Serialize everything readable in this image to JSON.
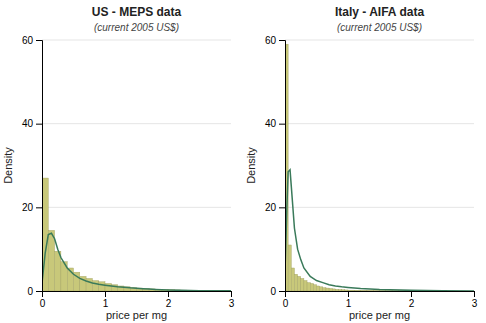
{
  "chart_data": [
    {
      "type": "histogram",
      "title": "US - MEPS data",
      "subtitle": "(current 2005 US$)",
      "xlabel": "price per mg",
      "ylabel": "Density",
      "xlim": [
        0,
        3
      ],
      "ylim": [
        0,
        60
      ],
      "xticks": [
        0,
        1,
        2,
        3
      ],
      "yticks": [
        0,
        20,
        40,
        60
      ],
      "grid": "y",
      "series": [
        {
          "type": "bar",
          "color": "#c8c87a",
          "bins": [
            0.0,
            0.1,
            0.2,
            0.3,
            0.4,
            0.5,
            0.6,
            0.7,
            0.8,
            0.9,
            1.0,
            1.1,
            1.2,
            1.3,
            1.4,
            1.5,
            1.6,
            1.7,
            1.8,
            1.9,
            2.0,
            2.1,
            2.2,
            2.3,
            2.4,
            2.5,
            2.6,
            2.7,
            2.8,
            2.9,
            3.0
          ],
          "values": [
            27.0,
            14.5,
            9.5,
            7.0,
            5.5,
            4.5,
            3.5,
            3.0,
            2.5,
            2.2,
            1.8,
            1.5,
            1.2,
            1.0,
            0.8,
            0.7,
            0.6,
            0.5,
            0.4,
            0.35,
            0.3,
            0.25,
            0.2,
            0.18,
            0.15,
            0.13,
            0.11,
            0.1,
            0.09,
            0.08
          ]
        },
        {
          "type": "line",
          "color": "#3a7a5a",
          "x": [
            0.001,
            0.05,
            0.1,
            0.15,
            0.2,
            0.25,
            0.3,
            0.4,
            0.5,
            0.6,
            0.7,
            0.8,
            0.9,
            1.0,
            1.1,
            1.2,
            1.3,
            1.4,
            1.5,
            1.6,
            1.7,
            1.8,
            1.9,
            2.0,
            2.2,
            2.5,
            3.0
          ],
          "values": [
            2.0,
            9.0,
            13.5,
            13.8,
            12.5,
            10.0,
            8.0,
            5.5,
            4.0,
            3.0,
            2.4,
            1.9,
            1.6,
            1.4,
            1.2,
            1.0,
            0.9,
            0.75,
            0.65,
            0.55,
            0.45,
            0.38,
            0.3,
            0.24,
            0.15,
            0.08,
            0.03
          ]
        }
      ]
    },
    {
      "type": "histogram",
      "title": "Italy - AIFA data",
      "subtitle": "(current 2005 US$)",
      "xlabel": "price per mg",
      "ylabel": "Density",
      "xlim": [
        0,
        3
      ],
      "ylim": [
        0,
        60
      ],
      "xticks": [
        0,
        1,
        2,
        3
      ],
      "yticks": [
        0,
        20,
        40,
        60
      ],
      "grid": "y",
      "series": [
        {
          "type": "bar",
          "color": "#c8c87a",
          "bins": [
            0.0,
            0.05,
            0.1,
            0.15,
            0.2,
            0.25,
            0.3,
            0.35,
            0.4,
            0.45,
            0.5,
            0.55,
            0.6,
            0.65,
            0.7,
            0.75,
            0.8,
            0.85,
            0.9,
            0.95,
            1.0,
            1.1,
            1.2,
            1.3,
            1.4,
            1.5,
            1.6,
            1.7,
            1.8,
            1.9,
            2.0
          ],
          "values": [
            59.0,
            11.0,
            5.5,
            4.0,
            3.5,
            3.0,
            2.5,
            2.0,
            1.8,
            1.5,
            1.2,
            1.0,
            0.8,
            0.7,
            0.6,
            0.5,
            0.4,
            0.35,
            0.3,
            0.25,
            0.2,
            0.18,
            0.15,
            0.13,
            0.11,
            0.1,
            0.09,
            0.08,
            0.07,
            0.06
          ]
        },
        {
          "type": "line",
          "color": "#3a7a5a",
          "x": [
            0.001,
            0.03,
            0.05,
            0.08,
            0.1,
            0.15,
            0.2,
            0.25,
            0.3,
            0.4,
            0.5,
            0.6,
            0.7,
            0.8,
            0.9,
            1.0,
            1.2,
            1.5,
            2.0,
            2.5,
            3.0
          ],
          "values": [
            5.0,
            20.0,
            28.5,
            29.0,
            25.0,
            15.0,
            10.0,
            7.5,
            5.5,
            3.5,
            2.5,
            2.0,
            1.5,
            1.2,
            1.0,
            0.85,
            0.6,
            0.35,
            0.15,
            0.06,
            0.02
          ]
        }
      ]
    }
  ]
}
